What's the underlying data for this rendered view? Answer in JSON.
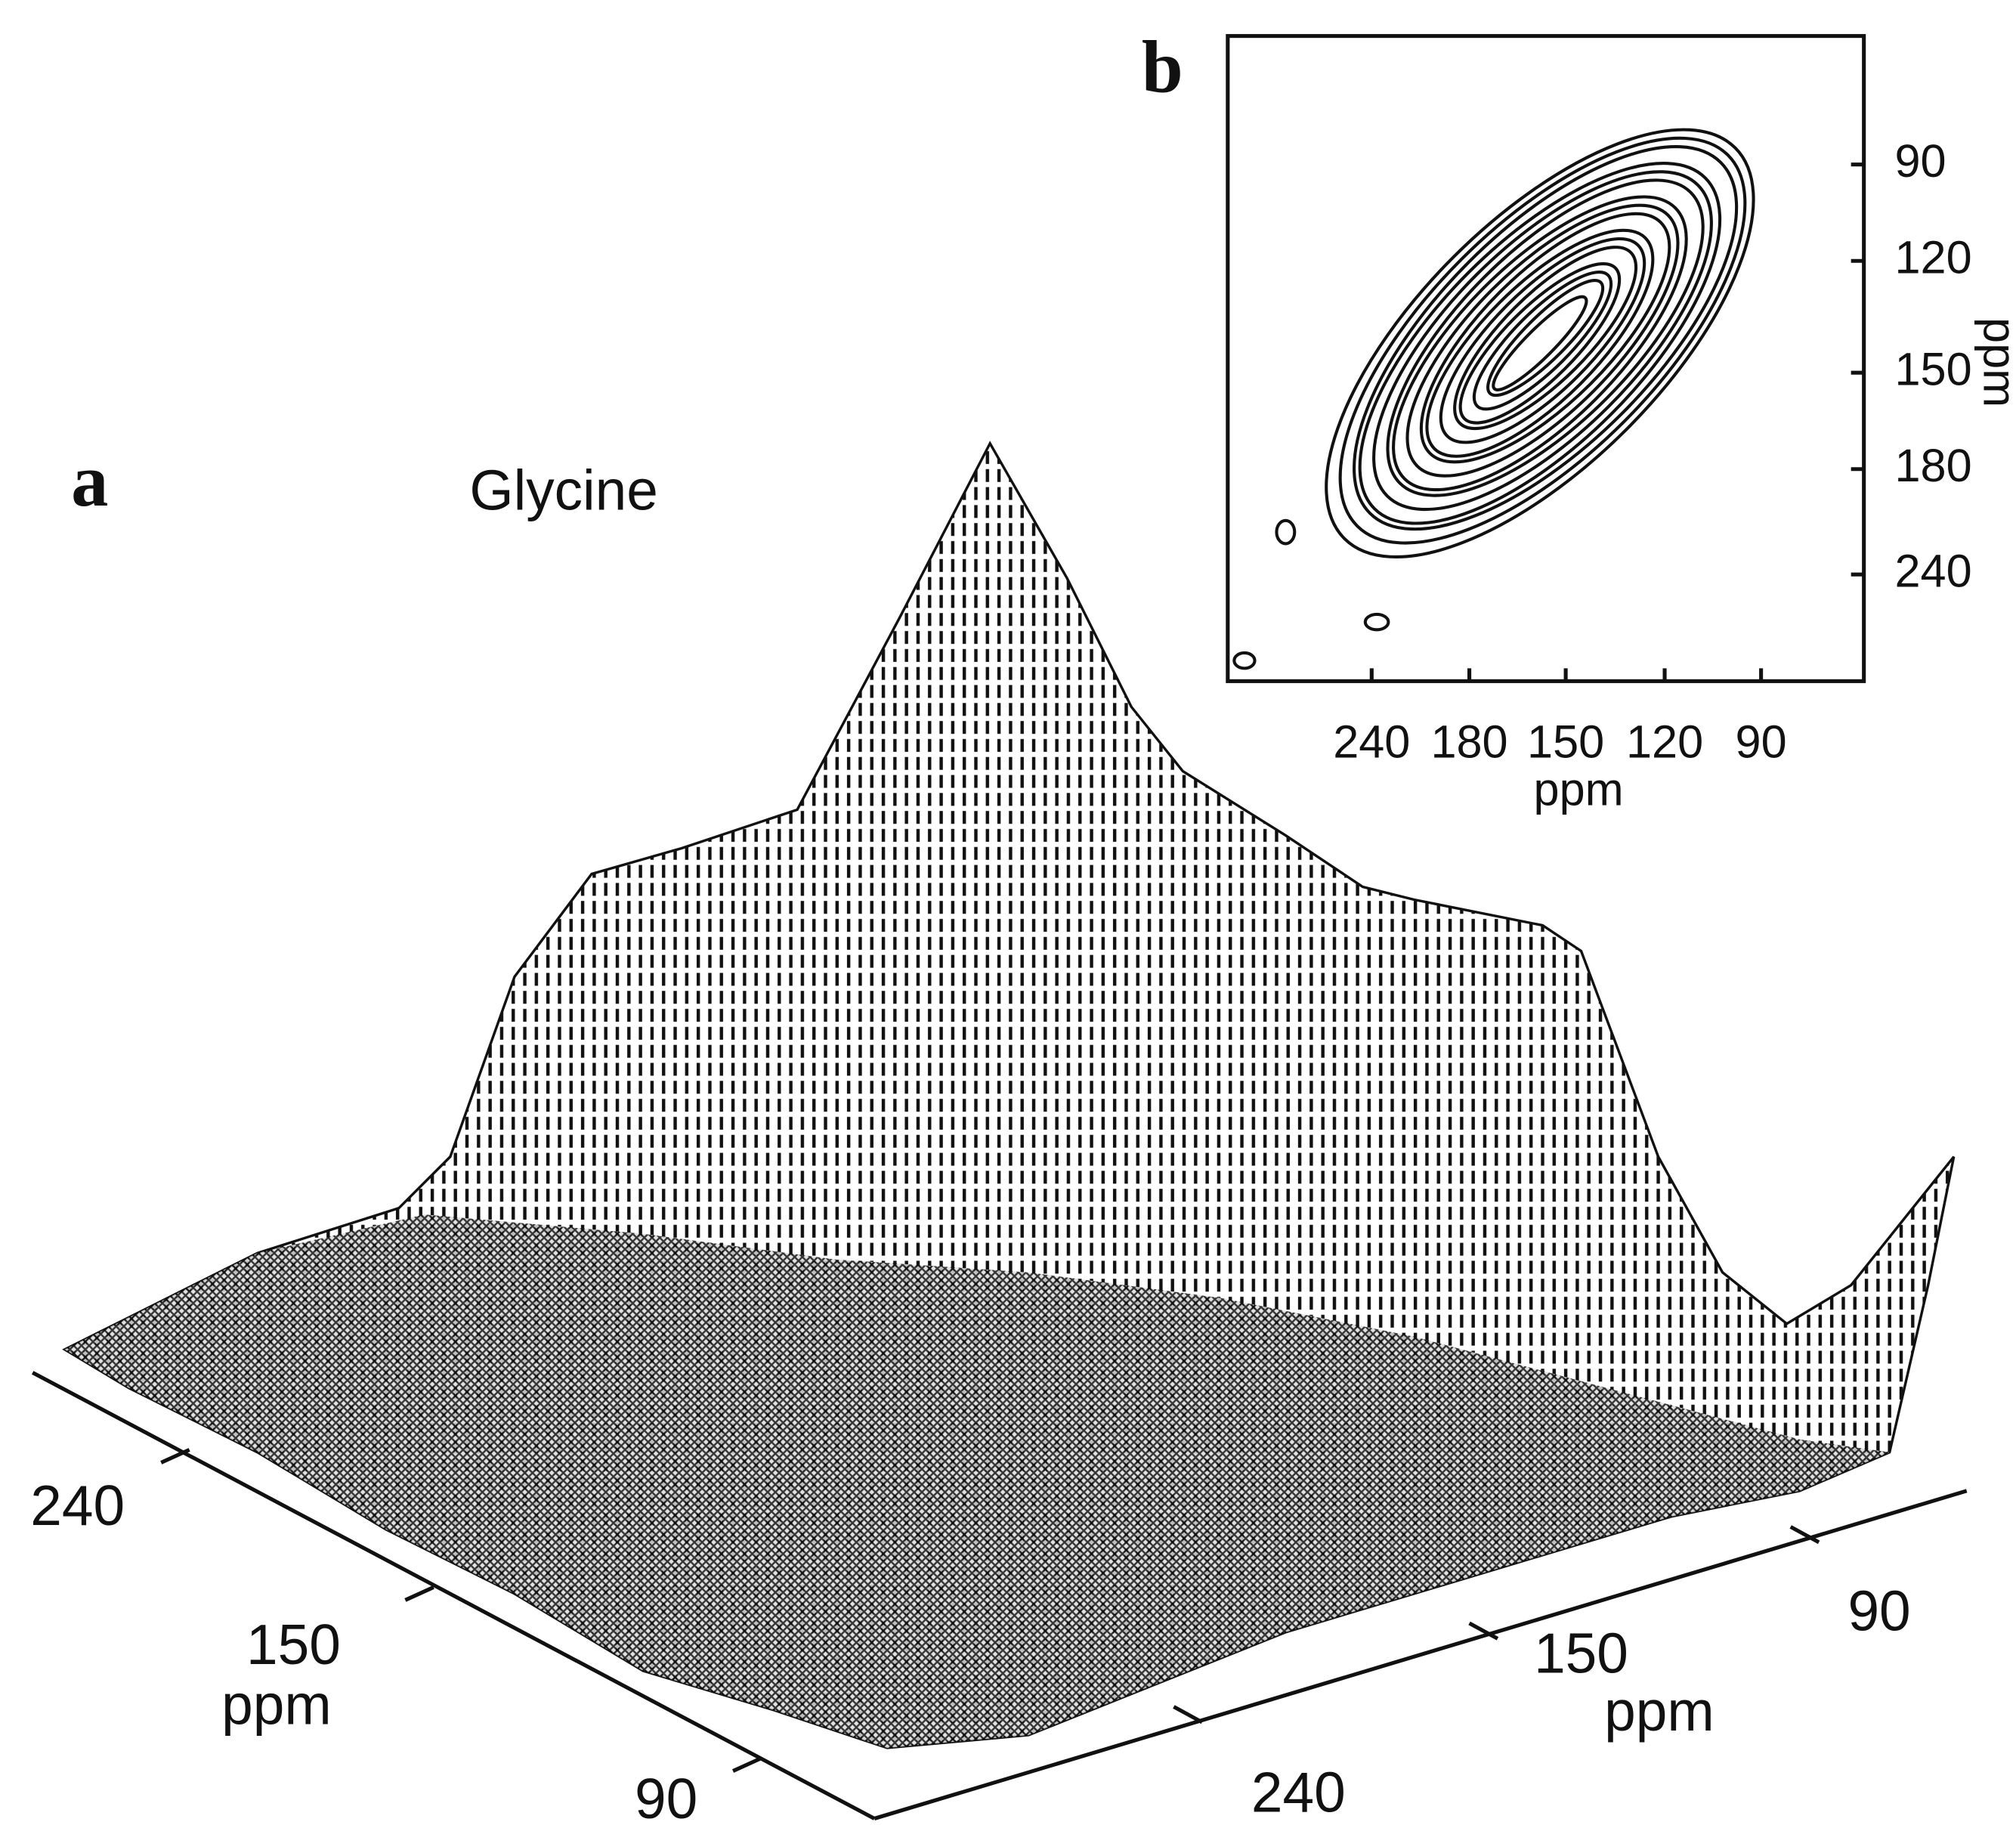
{
  "panel_a": {
    "label": "a",
    "title": "Glycine",
    "left_axis": {
      "ticks": [
        240,
        150,
        90
      ],
      "label": "ppm"
    },
    "right_axis": {
      "ticks": [
        240,
        150,
        90
      ],
      "label": "ppm"
    }
  },
  "panel_b": {
    "label": "b",
    "x_axis": {
      "ticks": [
        240,
        180,
        150,
        120,
        90
      ],
      "label": "ppm"
    },
    "y_axis": {
      "ticks": [
        90,
        120,
        150,
        180,
        240
      ],
      "label": "ppm"
    }
  }
}
